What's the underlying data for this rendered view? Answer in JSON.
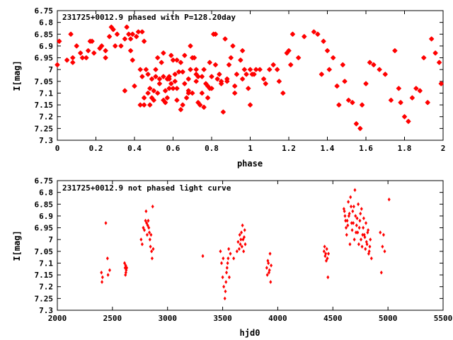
{
  "chart_data": [
    {
      "type": "scatter",
      "title": "231725+0012.9 phased with P=128.20day",
      "xlabel": "phase",
      "ylabel": "I[mag]",
      "xlim": [
        0,
        2
      ],
      "ylim": [
        6.75,
        7.3
      ],
      "y_inverted": true,
      "grid": false,
      "marker": "star",
      "color": "#ff0000",
      "xticks": [
        "0",
        "0.2",
        "0.4",
        "0.6",
        "0.8",
        "1",
        "1.2",
        "1.4",
        "1.6",
        "1.8",
        "2"
      ],
      "yticks": [
        "6.75",
        "6.8",
        "6.85",
        "6.9",
        "6.95",
        "7",
        "7.05",
        "7.1",
        "7.15",
        "7.2",
        "7.25",
        "7.3"
      ],
      "x": [
        0.0,
        0.01,
        0.07,
        0.08,
        0.08,
        0.1,
        0.12,
        0.13,
        0.16,
        0.17,
        0.18,
        0.19,
        0.22,
        0.23,
        0.25,
        0.27,
        0.28,
        0.29,
        0.3,
        0.31,
        0.33,
        0.35,
        0.36,
        0.37,
        0.38,
        0.38,
        0.39,
        0.39,
        0.4,
        0.41,
        0.42,
        0.43,
        0.43,
        0.44,
        0.44,
        0.45,
        0.45,
        0.46,
        0.47,
        0.47,
        0.48,
        0.48,
        0.49,
        0.49,
        0.5,
        0.5,
        0.51,
        0.51,
        0.52,
        0.53,
        0.53,
        0.54,
        0.55,
        0.55,
        0.56,
        0.56,
        0.57,
        0.57,
        0.58,
        0.58,
        0.59,
        0.59,
        0.6,
        0.6,
        0.61,
        0.61,
        0.62,
        0.62,
        0.63,
        0.64,
        0.64,
        0.65,
        0.66,
        0.66,
        0.67,
        0.68,
        0.68,
        0.69,
        0.69,
        0.7,
        0.7,
        0.71,
        0.72,
        0.72,
        0.73,
        0.73,
        0.74,
        0.75,
        0.76,
        0.77,
        0.78,
        0.78,
        0.79,
        0.79,
        0.8,
        0.8,
        0.81,
        0.82,
        0.83,
        0.84,
        0.85,
        0.86,
        0.87,
        0.88,
        0.89,
        0.9,
        0.91,
        0.92,
        0.93,
        0.95,
        0.96,
        0.97,
        0.98,
        0.99,
        1.0,
        1.0,
        1.01,
        1.02,
        1.03,
        1.05,
        1.07,
        1.08,
        1.1,
        1.12,
        1.14,
        1.15,
        1.17,
        1.19,
        1.2,
        1.21,
        1.22,
        1.25,
        1.28,
        1.33,
        1.35,
        1.37,
        1.38,
        1.4,
        1.41,
        1.43,
        1.45,
        1.46,
        1.48,
        1.49,
        1.51,
        1.53,
        1.55,
        1.57,
        1.58,
        1.6,
        1.62,
        1.64,
        1.67,
        1.7,
        1.73,
        1.75,
        1.77,
        1.78,
        1.8,
        1.82,
        1.84,
        1.86,
        1.88,
        1.9,
        1.92,
        1.94,
        1.96,
        1.98,
        1.99,
        0.45,
        0.55,
        0.65,
        0.75,
        0.85,
        0.35,
        0.25,
        0.15,
        0.05,
        0.52,
        0.58,
        0.62,
        0.68,
        0.72,
        0.76,
        0.82,
        0.88,
        0.92,
        0.96
      ],
      "y": [
        6.98,
        6.88,
        6.85,
        6.95,
        6.97,
        6.9,
        6.93,
        6.95,
        6.92,
        6.88,
        6.88,
        6.93,
        6.91,
        6.9,
        6.92,
        6.86,
        6.82,
        6.83,
        6.9,
        6.85,
        6.9,
        6.87,
        6.82,
        6.85,
        6.87,
        6.92,
        6.96,
        6.85,
        7.07,
        6.86,
        6.84,
        7.15,
        7.0,
        6.84,
        7.03,
        7.15,
        7.12,
        7.0,
        7.02,
        7.1,
        7.15,
        7.08,
        7.12,
        7.04,
        7.13,
        7.09,
        7.0,
        7.03,
        7.1,
        7.06,
        7.04,
        6.97,
        7.03,
        7.13,
        7.09,
        7.14,
        7.04,
        7.12,
        7.08,
        7.03,
        6.94,
        7.06,
        6.96,
        7.08,
        7.02,
        7.05,
        7.13,
        6.96,
        7.01,
        6.97,
        7.17,
        7.15,
        7.06,
        6.94,
        7.12,
        7.09,
        7.04,
        6.9,
        7.0,
        7.1,
        6.95,
        6.95,
        7.02,
        7.0,
        7.14,
        7.03,
        7.15,
        7.1,
        7.16,
        7.06,
        7.07,
        7.12,
        7.08,
        6.97,
        7.03,
        7.08,
        6.85,
        6.85,
        7.04,
        7.02,
        7.05,
        7.18,
        6.87,
        7.04,
        6.98,
        6.95,
        6.9,
        7.07,
        7.02,
        6.96,
        6.92,
        7.0,
        7.02,
        7.08,
        7.0,
        7.15,
        7.02,
        7.02,
        7.0,
        7.0,
        7.04,
        7.06,
        7.0,
        6.98,
        7.0,
        7.05,
        7.1,
        6.93,
        6.92,
        6.98,
        6.85,
        6.95,
        6.86,
        6.84,
        6.85,
        7.02,
        6.88,
        6.92,
        7.0,
        6.95,
        7.07,
        7.15,
        6.98,
        7.05,
        7.13,
        7.14,
        7.23,
        7.25,
        7.15,
        7.06,
        6.97,
        6.98,
        7.0,
        7.02,
        7.13,
        6.92,
        7.08,
        7.14,
        7.2,
        7.22,
        7.12,
        7.08,
        7.09,
        6.95,
        7.14,
        6.87,
        6.93,
        6.97,
        7.06,
        6.88,
        6.93,
        7.01,
        7.03,
        7.06,
        7.09,
        6.95,
        6.95,
        6.96,
        6.95,
        7.04,
        7.08,
        7.1,
        7.05,
        7.0,
        6.98,
        7.05,
        7.1,
        7.04
      ]
    },
    {
      "type": "scatter",
      "title": "231725+0012.9 not phased light curve",
      "xlabel": "hjd0",
      "ylabel": "I[mag]",
      "xlim": [
        2000,
        5500
      ],
      "ylim": [
        6.75,
        7.3
      ],
      "y_inverted": true,
      "grid": false,
      "marker": "diamond",
      "color": "#ff0000",
      "xticks": [
        "2000",
        "2500",
        "3000",
        "3500",
        "4000",
        "4500",
        "5000",
        "5500"
      ],
      "yticks": [
        "6.75",
        "6.8",
        "6.85",
        "6.9",
        "6.95",
        "7",
        "7.05",
        "7.1",
        "7.15",
        "7.2",
        "7.25",
        "7.3"
      ],
      "x": [
        2400,
        2405,
        2410,
        2440,
        2455,
        2460,
        2475,
        2610,
        2615,
        2618,
        2620,
        2622,
        2625,
        2630,
        2760,
        2770,
        2780,
        2790,
        2800,
        2805,
        2810,
        2815,
        2820,
        2825,
        2830,
        2835,
        2840,
        2845,
        2850,
        2855,
        2860,
        2865,
        2870,
        3320,
        3480,
        3490,
        3500,
        3505,
        3510,
        3520,
        3525,
        3530,
        3535,
        3540,
        3545,
        3550,
        3555,
        3560,
        3570,
        3600,
        3630,
        3640,
        3650,
        3655,
        3660,
        3665,
        3670,
        3675,
        3680,
        3685,
        3690,
        3695,
        3700,
        3705,
        3900,
        3905,
        3910,
        3915,
        3920,
        3925,
        3930,
        3935,
        3940,
        4420,
        4425,
        4430,
        4435,
        4440,
        4445,
        4450,
        4455,
        4460,
        4600,
        4610,
        4620,
        4630,
        4640,
        4650,
        4660,
        4670,
        4680,
        4690,
        4700,
        4710,
        4720,
        4730,
        4740,
        4750,
        4760,
        4770,
        4780,
        4790,
        4800,
        4810,
        4820,
        4830,
        4840,
        4850,
        4930,
        4940,
        4950,
        4960,
        4970,
        5010,
        4605,
        4615,
        4625,
        4635,
        4645,
        4655,
        4665,
        4675,
        4685,
        4695,
        4705,
        4715,
        4725,
        4735,
        4745,
        4755,
        4765,
        4775,
        4785,
        4795,
        4805,
        4815,
        4825,
        4835
      ],
      "y": [
        7.14,
        7.18,
        7.16,
        6.93,
        7.08,
        7.15,
        7.13,
        7.1,
        7.12,
        7.15,
        7.11,
        7.14,
        7.13,
        7.12,
        7.0,
        7.02,
        6.95,
        6.96,
        6.92,
        6.88,
        6.93,
        6.98,
        6.94,
        6.92,
        6.95,
        6.97,
        7.0,
        7.03,
        6.98,
        7.05,
        7.08,
        6.86,
        7.04,
        7.07,
        7.05,
        7.1,
        7.16,
        7.08,
        7.2,
        7.25,
        7.22,
        7.18,
        7.14,
        7.12,
        7.1,
        7.08,
        7.04,
        7.16,
        7.06,
        7.08,
        7.05,
        7.01,
        7.04,
        6.98,
        7.02,
        7.0,
        6.97,
        7.03,
        6.94,
        7.0,
        7.05,
        6.99,
        6.96,
        7.02,
        7.12,
        7.15,
        7.09,
        7.1,
        7.14,
        7.13,
        7.06,
        7.18,
        7.11,
        7.05,
        7.03,
        7.07,
        7.06,
        7.09,
        7.04,
        7.08,
        7.16,
        7.06,
        6.87,
        6.9,
        6.95,
        6.92,
        6.84,
        6.89,
        6.82,
        6.93,
        6.88,
        6.86,
        6.79,
        6.97,
        6.91,
        6.85,
        6.95,
        6.89,
        6.87,
        6.98,
        6.91,
        6.99,
        6.93,
        7.02,
        6.96,
        7.05,
        7.0,
        7.08,
        6.97,
        7.14,
        7.03,
        6.98,
        7.05,
        6.83,
        6.88,
        6.92,
        6.98,
        6.94,
        6.9,
        7.02,
        6.86,
        6.96,
        6.93,
        7.0,
        6.9,
        6.94,
        6.97,
        7.02,
        6.92,
        7.0,
        7.03,
        6.95,
        6.98,
        7.04,
        7.01,
        6.97,
        7.06,
        7.03
      ]
    }
  ]
}
